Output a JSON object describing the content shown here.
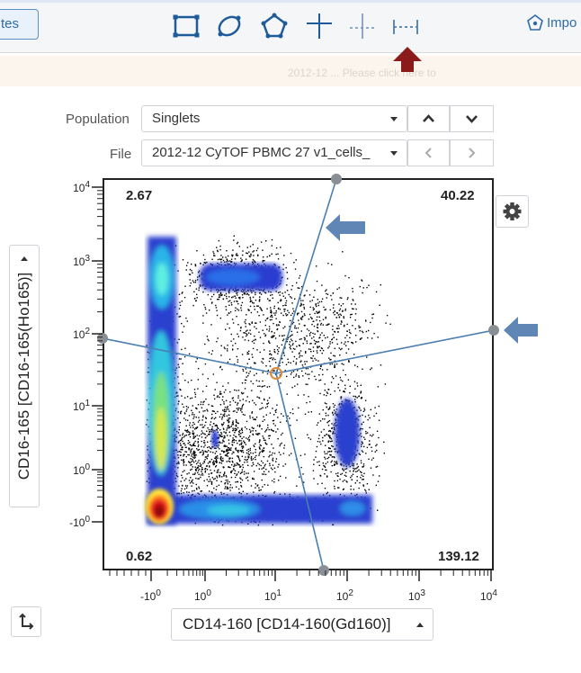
{
  "toolbar": {
    "left_tab_label": "tes",
    "tools": [
      {
        "name": "rectangle-gate-icon"
      },
      {
        "name": "ellipse-gate-icon"
      },
      {
        "name": "polygon-gate-icon"
      },
      {
        "name": "quadrant-gate-icon"
      },
      {
        "name": "skewed-quadrant-gate-icon"
      },
      {
        "name": "range-gate-icon"
      }
    ],
    "import_label": "Impo"
  },
  "notice": {
    "text": "2012-12 ... Please click here to"
  },
  "population": {
    "label": "Population",
    "value": "Singlets"
  },
  "file": {
    "label": "File",
    "value": "2012-12 CyTOF PBMC 27 v1_cells_"
  },
  "plot": {
    "quadrant_stats": {
      "upper_left": "2.67",
      "upper_right": "40.22",
      "lower_left": "0.62",
      "lower_right": "139.12"
    },
    "y_axis_label": "CD16-165 [CD16-165(Ho165)]",
    "x_axis_label": "CD14-160 [CD14-160(Gd160)]",
    "y_ticks": [
      {
        "base": "10",
        "exp": "4"
      },
      {
        "base": "10",
        "exp": "3"
      },
      {
        "base": "10",
        "exp": "2"
      },
      {
        "base": "10",
        "exp": "1"
      },
      {
        "base": "10",
        "exp": "0"
      },
      {
        "base": "-10",
        "exp": "0"
      }
    ],
    "x_ticks": [
      {
        "base": "-10",
        "exp": "0"
      },
      {
        "base": "10",
        "exp": "0"
      },
      {
        "base": "10",
        "exp": "1"
      },
      {
        "base": "10",
        "exp": "2"
      },
      {
        "base": "10",
        "exp": "3"
      },
      {
        "base": "10",
        "exp": "4"
      }
    ]
  },
  "colors": {
    "accent": "#2f6aa8",
    "gate_line": "#4a7fb0",
    "gate_handle": "#8a8f96",
    "gate_center": "#e08a3c",
    "pointer_arrow": "#5f86b5",
    "marker_arrow": "#8b1a1a"
  }
}
